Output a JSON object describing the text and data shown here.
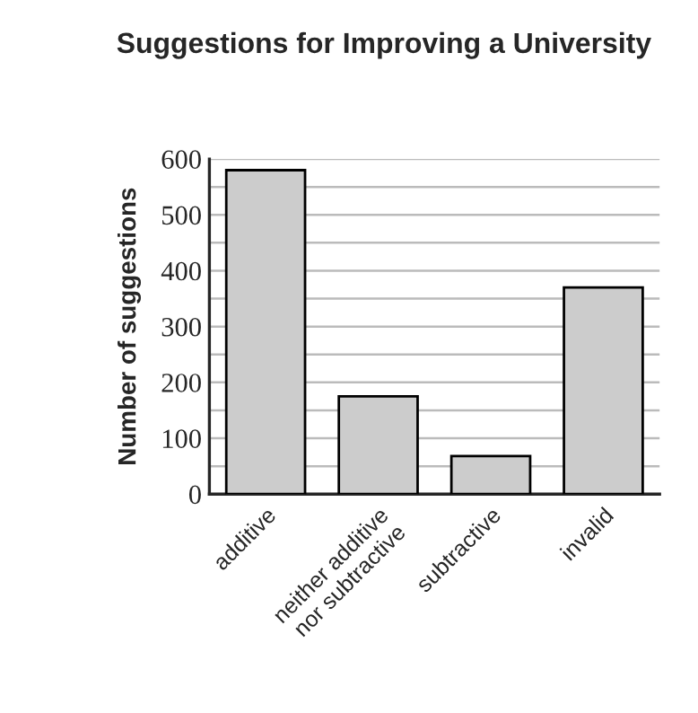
{
  "chart_data": {
    "type": "bar",
    "title": "Suggestions for Improving a University",
    "ylabel": "Number of suggestions",
    "categories": [
      "additive",
      "neither additive\nnor subtractive",
      "subtractive",
      "invalid"
    ],
    "values": [
      580,
      175,
      68,
      370
    ],
    "color": "#cccccc",
    "ylim": [
      0,
      600
    ],
    "yticks": [
      0,
      {
        "value": 50,
        "label": null
      },
      100,
      {
        "value": 150,
        "label": null
      },
      200,
      {
        "value": 250,
        "label": null
      },
      300,
      {
        "value": 350,
        "label": null
      },
      400,
      {
        "value": 450,
        "label": null
      },
      500,
      {
        "value": 550,
        "label": null
      },
      600
    ],
    "grid": "y"
  }
}
